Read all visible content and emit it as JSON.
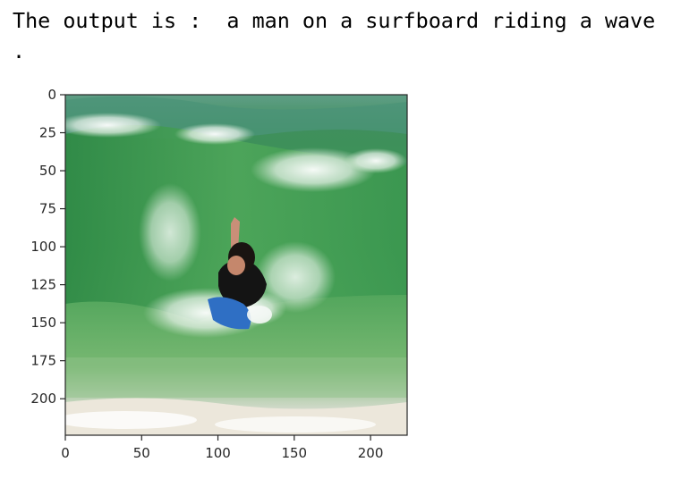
{
  "output": {
    "line1": "The output is :  a man on a surfboard riding a wave",
    "line2": "."
  },
  "figure": {
    "image_label": "surfer-photo",
    "x_ticks": [
      {
        "value": 0,
        "label": "0"
      },
      {
        "value": 50,
        "label": "50"
      },
      {
        "value": 100,
        "label": "100"
      },
      {
        "value": 150,
        "label": "150"
      },
      {
        "value": 200,
        "label": "200"
      }
    ],
    "y_ticks": [
      {
        "value": 0,
        "label": "0"
      },
      {
        "value": 25,
        "label": "25"
      },
      {
        "value": 50,
        "label": "50"
      },
      {
        "value": 75,
        "label": "75"
      },
      {
        "value": 100,
        "label": "100"
      },
      {
        "value": 125,
        "label": "125"
      },
      {
        "value": 150,
        "label": "150"
      },
      {
        "value": 175,
        "label": "175"
      },
      {
        "value": 200,
        "label": "200"
      }
    ],
    "x_range": [
      0,
      224
    ],
    "y_range": [
      0,
      224
    ],
    "colors": {
      "axis": "#262626",
      "water_dark": "#2f8a46",
      "water_mid": "#4ea65a",
      "water_light": "#7fbf7a",
      "foam": "#f2f6f4",
      "sand": "#e9e4d8"
    }
  }
}
